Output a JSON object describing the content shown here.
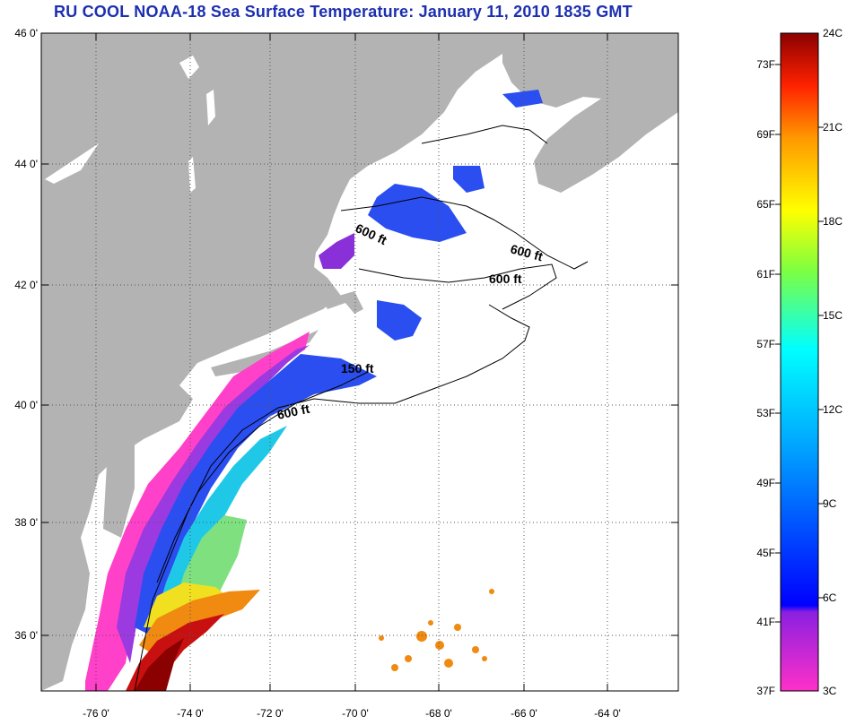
{
  "title": "RU COOL  NOAA-18  Sea Surface Temperature:  January 11, 2010 1835 GMT",
  "lat_ticks": [
    "46 0'",
    "44 0'",
    "42 0'",
    "40 0'",
    "38 0'",
    "36 0'"
  ],
  "lon_ticks": [
    "-76 0'",
    "-74 0'",
    "-72 0'",
    "-70 0'",
    "-68 0'",
    "-66 0'",
    "-64 0'"
  ],
  "contour_labels": [
    "600 ft",
    "600 ft",
    "600 ft",
    "150 ft",
    "600 ft"
  ],
  "colorbar": {
    "fahrenheit": [
      "73F",
      "69F",
      "65F",
      "61F",
      "57F",
      "53F",
      "49F",
      "45F",
      "41F",
      "37F"
    ],
    "celsius": [
      "24C",
      "21C",
      "18C",
      "15C",
      "12C",
      "9C",
      "6C",
      "3C"
    ]
  },
  "colors": {
    "title": "#1c2fb0",
    "land": "#b3b3b3",
    "ocean": "#ffffff"
  }
}
